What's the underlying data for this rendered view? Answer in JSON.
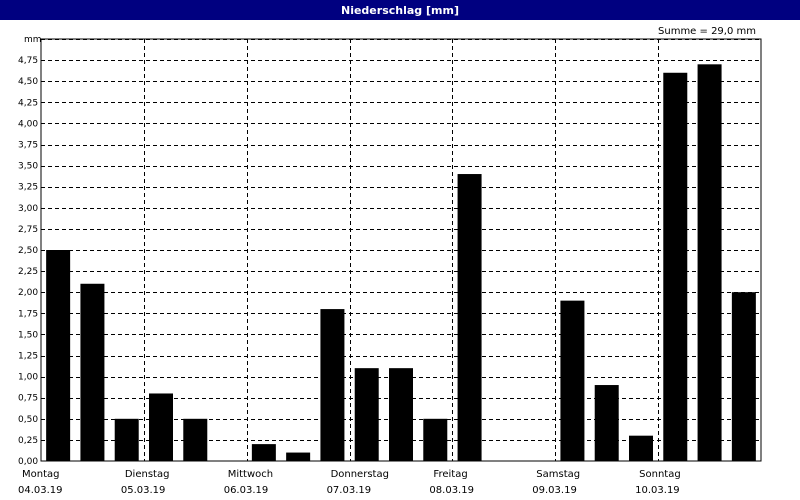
{
  "title": "Niederschlag [mm]",
  "summary": "Summe = 29,0 mm",
  "colors": {
    "title_bg": "#000080",
    "bar": "#000000",
    "grid": "#000000"
  },
  "chart_data": {
    "type": "bar",
    "title": "Niederschlag [mm]",
    "ylabel": "mm",
    "ylim": [
      0,
      5.0
    ],
    "yticks": [
      "0,00",
      "0,25",
      "0,50",
      "0,75",
      "1,00",
      "1,25",
      "1,50",
      "1,75",
      "2,00",
      "2,25",
      "2,50",
      "2,75",
      "3,00",
      "3,25",
      "3,50",
      "3,75",
      "4,00",
      "4,25",
      "4,50",
      "4,75"
    ],
    "grid": true,
    "days": [
      {
        "weekday": "Montag",
        "date": "04.03.19"
      },
      {
        "weekday": "Dienstag",
        "date": "05.03.19"
      },
      {
        "weekday": "Mittwoch",
        "date": "06.03.19"
      },
      {
        "weekday": "Donnerstag",
        "date": "07.03.19"
      },
      {
        "weekday": "Freitag",
        "date": "08.03.19"
      },
      {
        "weekday": "Samstag",
        "date": "09.03.19"
      },
      {
        "weekday": "Sonntag",
        "date": "10.03.19"
      }
    ],
    "bars_per_day": 3,
    "values": [
      2.5,
      2.1,
      0.5,
      0.8,
      0.5,
      0,
      0.2,
      0.1,
      1.8,
      1.1,
      1.1,
      0.5,
      3.4,
      0,
      0,
      1.9,
      0.9,
      0.3,
      4.6,
      4.7,
      2.0
    ]
  }
}
